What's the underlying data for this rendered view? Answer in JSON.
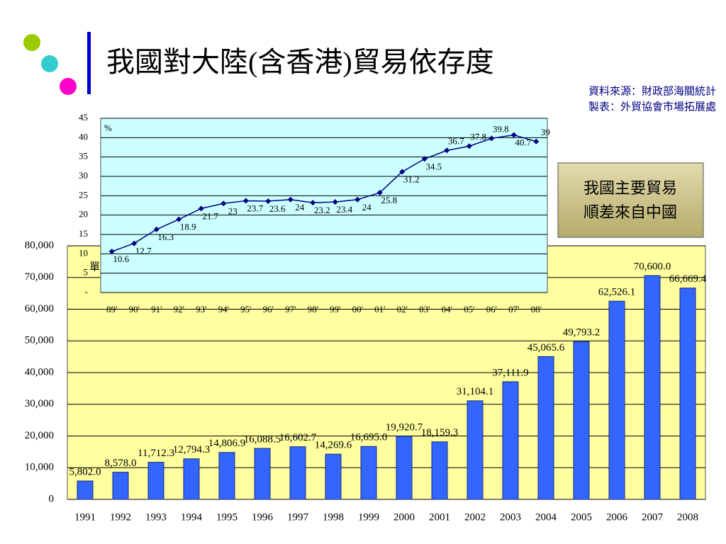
{
  "header": {
    "title": "我國對大陸(含香港)貿易依存度",
    "source": "資料來源：財政部海關統計",
    "made_by": "製表：外貿協會市場拓展處",
    "callout": [
      "我國主要貿易",
      "順差來自中國"
    ]
  },
  "chart_data": [
    {
      "type": "bar",
      "unit_label": "單",
      "categories": [
        "1991",
        "1992",
        "1993",
        "1994",
        "1995",
        "1996",
        "1997",
        "1998",
        "1999",
        "2000",
        "2001",
        "2002",
        "2003",
        "2004",
        "2005",
        "2006",
        "2007",
        "2008"
      ],
      "values": [
        5802.0,
        8578.0,
        11712.3,
        12794.3,
        14806.9,
        16088.5,
        16602.7,
        14269.6,
        16695.0,
        19920.7,
        18159.3,
        31104.1,
        37111.9,
        45065.6,
        49793.2,
        62526.1,
        70600.0,
        66669.4
      ],
      "value_labels": [
        "5,802.0",
        "8,578.0",
        "11,712.3",
        "12,794.3",
        "14,806.9",
        "16,088.5",
        "16,602.7",
        "14,269.6",
        "16,695.0",
        "19,920.7",
        "18,159.3",
        "31,104.1",
        "37,111.9",
        "45,065.6",
        "49,793.2",
        "62,526.1",
        "70,600.0",
        "66,669.4"
      ],
      "color": "#3366ff",
      "ylim": [
        0,
        80000
      ],
      "yticks": [
        0,
        {
          "value": 10000,
          "label": "10,000"
        },
        {
          "value": 20000,
          "label": "20,000"
        },
        {
          "value": 30000,
          "label": "30,000"
        },
        {
          "value": 40000,
          "label": "40,000"
        },
        {
          "value": 50000,
          "label": "50,000"
        },
        {
          "value": 60000,
          "label": "60,000"
        },
        {
          "value": 70000,
          "label": "70,000"
        },
        {
          "value": 80000,
          "label": "80,000"
        }
      ],
      "grid": true
    },
    {
      "type": "line",
      "unit_label": "%",
      "categories": [
        "89'",
        "90'",
        "91'",
        "92'",
        "93'",
        "94'",
        "95'",
        "96'",
        "97'",
        "98'",
        "99'",
        "00'",
        "01'",
        "02'",
        "03'",
        "04'",
        "05'",
        "06'",
        "07'",
        "08'"
      ],
      "values": [
        10.6,
        12.7,
        16.3,
        18.9,
        21.7,
        23.0,
        23.7,
        23.6,
        24.0,
        23.2,
        23.4,
        24.0,
        25.8,
        31.2,
        34.5,
        36.7,
        37.8,
        39.8,
        40.7,
        39.0
      ],
      "color": "#000080",
      "ylim": [
        0,
        45
      ],
      "yticks": [
        {
          "value": 0,
          "label": "-"
        },
        5,
        10,
        15,
        20,
        25,
        30,
        35,
        40,
        45
      ],
      "grid": true
    }
  ]
}
